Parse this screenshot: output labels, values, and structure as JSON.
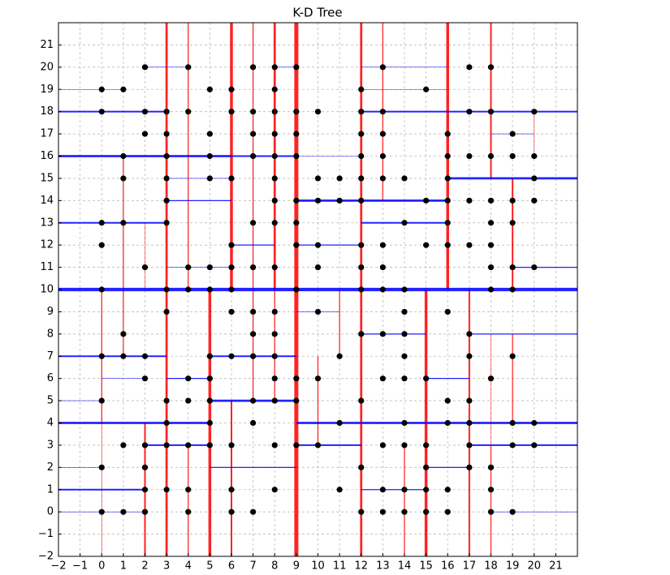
{
  "chart_data": {
    "type": "kdtree",
    "title": "K-D Tree",
    "xlim": [
      -2,
      22
    ],
    "ylim": [
      -2,
      22
    ],
    "xticks": [
      {
        "value": -2,
        "label": "−2"
      },
      {
        "value": -1,
        "label": "−1"
      },
      0,
      1,
      2,
      3,
      4,
      5,
      6,
      7,
      8,
      9,
      10,
      11,
      12,
      13,
      14,
      15,
      16,
      17,
      18,
      19,
      20,
      21
    ],
    "yticks": [
      {
        "value": -2,
        "label": "−2"
      },
      {
        "value": -1,
        "label": "−1"
      },
      0,
      1,
      2,
      3,
      4,
      5,
      6,
      7,
      8,
      9,
      10,
      11,
      12,
      13,
      14,
      15,
      16,
      17,
      18,
      19,
      20,
      21
    ],
    "grid": true,
    "split_colors": {
      "vertical": "#ff0000",
      "horizontal": "#0000ff"
    },
    "vertical_splits": [
      {
        "x": 9,
        "from": -2,
        "to": 22,
        "depth": 0
      },
      {
        "x": 6,
        "from": 10,
        "to": 22,
        "depth": 2
      },
      {
        "x": 5,
        "from": -2,
        "to": 10,
        "depth": 2
      },
      {
        "x": 16,
        "from": 10,
        "to": 22,
        "depth": 2
      },
      {
        "x": 15,
        "from": -2,
        "to": 10,
        "depth": 2
      },
      {
        "x": 12,
        "from": -2,
        "to": 22,
        "depth": 3
      },
      {
        "x": 3,
        "from": 10,
        "to": 22,
        "depth": 3
      },
      {
        "x": 3,
        "from": -2,
        "to": 10,
        "depth": 3
      },
      {
        "x": 8,
        "from": 10,
        "to": 22,
        "depth": 3
      },
      {
        "x": 2,
        "from": -2,
        "to": 4,
        "depth": 4
      },
      {
        "x": 6,
        "from": -2,
        "to": 5,
        "depth": 4
      },
      {
        "x": 18,
        "from": 15,
        "to": 22,
        "depth": 4
      },
      {
        "x": 17,
        "from": -2,
        "to": 10,
        "depth": 4
      },
      {
        "x": 19,
        "from": 10,
        "to": 15,
        "depth": 4
      },
      {
        "x": 1,
        "from": 10,
        "to": 16,
        "depth": 5
      },
      {
        "x": 0,
        "from": 4,
        "to": 10,
        "depth": 5
      },
      {
        "x": 4,
        "from": 10,
        "to": 22,
        "depth": 5
      },
      {
        "x": 7,
        "from": 10,
        "to": 22,
        "depth": 5
      },
      {
        "x": 1,
        "from": 7,
        "to": 10,
        "depth": 5
      },
      {
        "x": 8,
        "from": 5,
        "to": 10,
        "depth": 5
      },
      {
        "x": 7,
        "from": 5,
        "to": 10,
        "depth": 5
      },
      {
        "x": 4,
        "from": -2,
        "to": 3,
        "depth": 5
      },
      {
        "x": 10,
        "from": 3,
        "to": 7,
        "depth": 5
      },
      {
        "x": 14,
        "from": -2,
        "to": 3,
        "depth": 5
      },
      {
        "x": 13,
        "from": 14,
        "to": 22,
        "depth": 5
      },
      {
        "x": 18,
        "from": -2,
        "to": 3,
        "depth": 5
      },
      {
        "x": 19,
        "from": 4,
        "to": 8,
        "depth": 5
      },
      {
        "x": 11,
        "from": 7,
        "to": 10,
        "depth": 5
      },
      {
        "x": 0,
        "from": -2,
        "to": 4,
        "depth": 6
      },
      {
        "x": 2,
        "from": 10,
        "to": 13,
        "depth": 6
      },
      {
        "x": 18,
        "from": 3,
        "to": 8,
        "depth": 6
      },
      {
        "x": 20,
        "from": 16,
        "to": 18,
        "depth": 6
      }
    ],
    "horizontal_splits": [
      {
        "y": 10,
        "from": -2,
        "to": 9,
        "depth": 1
      },
      {
        "y": 10,
        "from": 9,
        "to": 22,
        "depth": 1
      },
      {
        "y": 16,
        "from": -2,
        "to": 6,
        "depth": 3
      },
      {
        "y": 4,
        "from": -2,
        "to": 5,
        "depth": 3
      },
      {
        "y": 14,
        "from": 9,
        "to": 16,
        "depth": 3
      },
      {
        "y": 4,
        "from": 9,
        "to": 22,
        "depth": 3
      },
      {
        "y": 15,
        "from": 16,
        "to": 22,
        "depth": 3
      },
      {
        "y": 5,
        "from": 5,
        "to": 9,
        "depth": 3
      },
      {
        "y": 18,
        "from": -2,
        "to": 3,
        "depth": 4
      },
      {
        "y": 13,
        "from": -2,
        "to": 3,
        "depth": 4
      },
      {
        "y": 7,
        "from": -2,
        "to": 3,
        "depth": 4
      },
      {
        "y": 1,
        "from": -2,
        "to": 2,
        "depth": 4
      },
      {
        "y": 3,
        "from": 2,
        "to": 5,
        "depth": 4
      },
      {
        "y": 18,
        "from": 12,
        "to": 22,
        "depth": 4
      },
      {
        "y": 7,
        "from": 5,
        "to": 9,
        "depth": 4
      },
      {
        "y": 16,
        "from": 6,
        "to": 9,
        "depth": 4
      },
      {
        "y": 3,
        "from": 9,
        "to": 12,
        "depth": 4
      },
      {
        "y": 3,
        "from": 17,
        "to": 22,
        "depth": 4
      },
      {
        "y": 13,
        "from": 12,
        "to": 16,
        "depth": 4
      },
      {
        "y": 2,
        "from": 5,
        "to": 9,
        "depth": 5
      },
      {
        "y": 8,
        "from": 12,
        "to": 15,
        "depth": 5
      },
      {
        "y": 1,
        "from": 12,
        "to": 15,
        "depth": 5
      },
      {
        "y": 6,
        "from": 15,
        "to": 17,
        "depth": 5
      },
      {
        "y": 11,
        "from": 19,
        "to": 22,
        "depth": 5
      },
      {
        "y": 8,
        "from": 17,
        "to": 22,
        "depth": 5
      },
      {
        "y": 12,
        "from": 6,
        "to": 8,
        "depth": 5
      },
      {
        "y": 12,
        "from": 9,
        "to": 12,
        "depth": 5
      },
      {
        "y": 14,
        "from": 3,
        "to": 6,
        "depth": 5
      },
      {
        "y": 6,
        "from": 3,
        "to": 5,
        "depth": 5
      },
      {
        "y": 2,
        "from": 15,
        "to": 17,
        "depth": 5
      },
      {
        "y": 19,
        "from": -2,
        "to": 1,
        "depth": 6
      },
      {
        "y": 20,
        "from": 2,
        "to": 4,
        "depth": 6
      },
      {
        "y": 20,
        "from": 8,
        "to": 9,
        "depth": 6
      },
      {
        "y": 15,
        "from": 3,
        "to": 6,
        "depth": 6
      },
      {
        "y": 11,
        "from": 3,
        "to": 6,
        "depth": 6
      },
      {
        "y": 6,
        "from": 0,
        "to": 2,
        "depth": 6
      },
      {
        "y": 5,
        "from": -2,
        "to": 0,
        "depth": 6
      },
      {
        "y": 2,
        "from": -2,
        "to": 0,
        "depth": 6
      },
      {
        "y": 0,
        "from": -2,
        "to": 2,
        "depth": 6
      },
      {
        "y": 9,
        "from": 9,
        "to": 11,
        "depth": 6
      },
      {
        "y": 0,
        "from": 18,
        "to": 22,
        "depth": 6
      },
      {
        "y": 19,
        "from": 12,
        "to": 16,
        "depth": 6
      },
      {
        "y": 17,
        "from": 18,
        "to": 20,
        "depth": 6
      },
      {
        "y": 16,
        "from": 9,
        "to": 12,
        "depth": 6
      },
      {
        "y": 20,
        "from": 12,
        "to": 16,
        "depth": 6
      }
    ],
    "series": [
      {
        "color": "#000000",
        "x": [
          2,
          4,
          7,
          8,
          9,
          13,
          17,
          18,
          0,
          1,
          5,
          6,
          8,
          12,
          15,
          0,
          2,
          3,
          4,
          6,
          7,
          8,
          9,
          10,
          12,
          13,
          17,
          18,
          20,
          2,
          3,
          5,
          7,
          8,
          9,
          12,
          13,
          16,
          19,
          1,
          3,
          5,
          7,
          8,
          9,
          12,
          13,
          16,
          17,
          18,
          19,
          20,
          1,
          3,
          5,
          6,
          8,
          10,
          11,
          12,
          13,
          14,
          16,
          20,
          3,
          8,
          9,
          10,
          11,
          12,
          15,
          16,
          17,
          18,
          19,
          20,
          0,
          1,
          3,
          7,
          8,
          9,
          14,
          16,
          18,
          19,
          0,
          6,
          9,
          10,
          12,
          13,
          15,
          16,
          17,
          18,
          2,
          4,
          5,
          6,
          7,
          8,
          10,
          12,
          13,
          18,
          19,
          20,
          0,
          3,
          4,
          5,
          6,
          9,
          12,
          13,
          14,
          18,
          19,
          3,
          6,
          7,
          8,
          10,
          14,
          16,
          1,
          7,
          8,
          12,
          13,
          14,
          17,
          0,
          1,
          2,
          5,
          6,
          7,
          8,
          11,
          14,
          17,
          19,
          2,
          4,
          5,
          8,
          9,
          10,
          13,
          14,
          15,
          18,
          0,
          3,
          4,
          5,
          7,
          8,
          9,
          12,
          16,
          17,
          3,
          5,
          7,
          11,
          14,
          16,
          17,
          19,
          20,
          1,
          2,
          3,
          4,
          5,
          6,
          8,
          9,
          10,
          13,
          14,
          15,
          17,
          19,
          20,
          0,
          2,
          12,
          15,
          17,
          18,
          2,
          3,
          4,
          6,
          8,
          11,
          13,
          14,
          15,
          16,
          18,
          0,
          1,
          2,
          4,
          6,
          7,
          12,
          13,
          14,
          15,
          16,
          18,
          19
        ],
        "values": [
          20,
          20,
          20,
          20,
          20,
          20,
          20,
          20,
          19,
          19,
          19,
          19,
          19,
          19,
          19,
          18,
          18,
          18,
          18,
          18,
          18,
          18,
          18,
          18,
          18,
          18,
          18,
          18,
          18,
          17,
          17,
          17,
          17,
          17,
          17,
          17,
          17,
          17,
          17,
          16,
          16,
          16,
          16,
          16,
          16,
          16,
          16,
          16,
          16,
          16,
          16,
          16,
          15,
          15,
          15,
          15,
          15,
          15,
          15,
          15,
          15,
          15,
          15,
          15,
          14,
          14,
          14,
          14,
          14,
          14,
          14,
          14,
          14,
          14,
          14,
          14,
          13,
          13,
          13,
          13,
          13,
          13,
          13,
          13,
          13,
          13,
          12,
          12,
          12,
          12,
          12,
          12,
          12,
          12,
          12,
          12,
          11,
          11,
          11,
          11,
          11,
          11,
          11,
          11,
          11,
          11,
          11,
          11,
          10,
          10,
          10,
          10,
          10,
          10,
          10,
          10,
          10,
          10,
          10,
          9,
          9,
          9,
          9,
          9,
          9,
          9,
          8,
          8,
          8,
          8,
          8,
          8,
          8,
          7,
          7,
          7,
          7,
          7,
          7,
          7,
          7,
          7,
          7,
          7,
          6,
          6,
          6,
          6,
          6,
          6,
          6,
          6,
          6,
          6,
          5,
          5,
          5,
          5,
          5,
          5,
          5,
          5,
          5,
          5,
          4,
          4,
          4,
          4,
          4,
          4,
          4,
          4,
          4,
          3,
          3,
          3,
          3,
          3,
          3,
          3,
          3,
          3,
          3,
          3,
          3,
          3,
          3,
          3,
          2,
          2,
          2,
          2,
          2,
          2,
          1,
          1,
          1,
          1,
          1,
          1,
          1,
          1,
          1,
          1,
          1,
          0,
          0,
          0,
          0,
          0,
          0,
          0,
          0,
          0,
          0,
          0,
          0,
          0
        ]
      }
    ]
  }
}
